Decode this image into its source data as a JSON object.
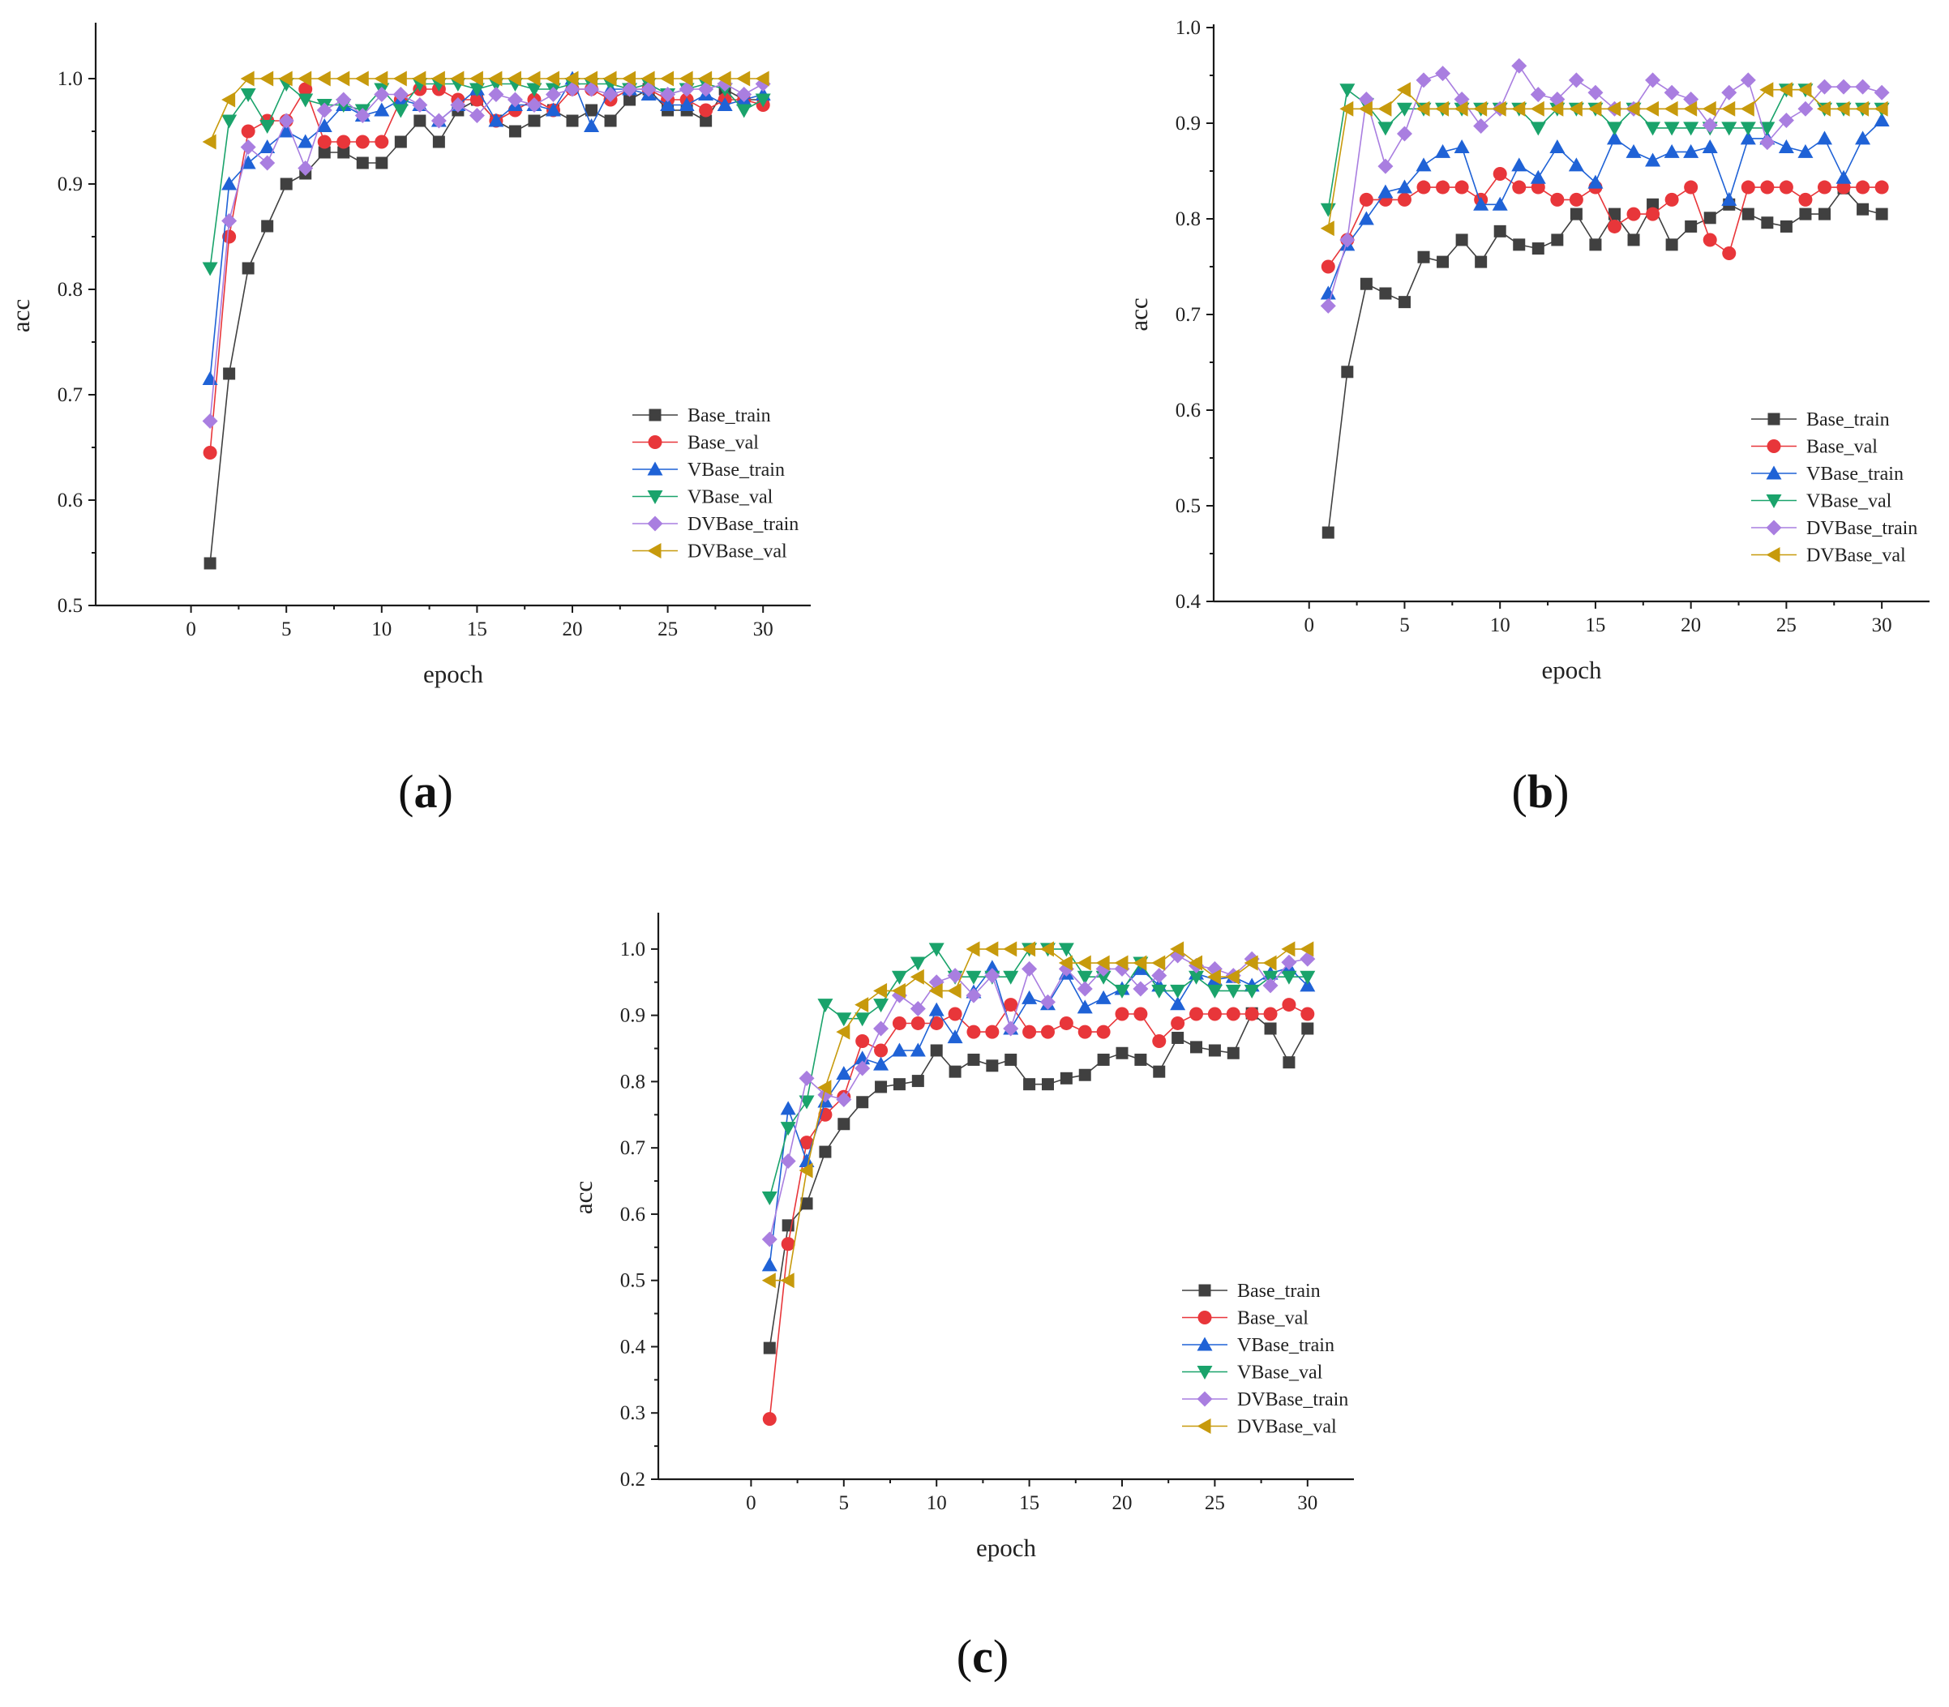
{
  "figure": {
    "panel_labels": {
      "a": {
        "open": "(",
        "letter": "a",
        "close": ")"
      },
      "b": {
        "open": "(",
        "letter": "b",
        "close": ")"
      },
      "c": {
        "open": "(",
        "letter": "c",
        "close": ")"
      }
    }
  },
  "chart_data": [
    {
      "id": "a",
      "type": "line",
      "title": "",
      "xlabel": "epoch",
      "ylabel": "acc",
      "xlim": [
        -5,
        32.5
      ],
      "ylim": [
        0.5,
        1.05
      ],
      "xticks": [
        "0",
        "5",
        "10",
        "15",
        "20",
        "25",
        "30"
      ],
      "yticks": [
        "0.5",
        "0.6",
        "0.7",
        "0.8",
        "0.9",
        "1.0"
      ],
      "legend_position": "bottom-right",
      "x": [
        1,
        2,
        3,
        4,
        5,
        6,
        7,
        8,
        9,
        10,
        11,
        12,
        13,
        14,
        15,
        16,
        17,
        18,
        19,
        20,
        21,
        22,
        23,
        24,
        25,
        26,
        27,
        28,
        29,
        30
      ],
      "series": [
        {
          "name": "Base_train",
          "color": "#404040",
          "marker": "square",
          "values": [
            0.54,
            0.72,
            0.82,
            0.86,
            0.9,
            0.91,
            0.93,
            0.93,
            0.92,
            0.92,
            0.94,
            0.96,
            0.94,
            0.97,
            0.98,
            0.96,
            0.95,
            0.96,
            0.97,
            0.96,
            0.97,
            0.96,
            0.98,
            0.99,
            0.97,
            0.97,
            0.96,
            0.99,
            0.98,
            0.98
          ]
        },
        {
          "name": "Base_val",
          "color": "#e8363a",
          "marker": "circle",
          "values": [
            0.645,
            0.85,
            0.95,
            0.96,
            0.96,
            0.99,
            0.94,
            0.94,
            0.94,
            0.94,
            0.98,
            0.99,
            0.99,
            0.98,
            0.98,
            0.96,
            0.97,
            0.98,
            0.97,
            0.99,
            0.99,
            0.98,
            0.99,
            0.99,
            0.98,
            0.98,
            0.97,
            0.98,
            0.98,
            0.975
          ]
        },
        {
          "name": "VBase_train",
          "color": "#1f62d6",
          "marker": "triangle-up",
          "values": [
            0.715,
            0.9,
            0.92,
            0.935,
            0.95,
            0.94,
            0.955,
            0.975,
            0.965,
            0.97,
            0.98,
            0.975,
            0.96,
            0.975,
            0.99,
            0.96,
            0.975,
            0.975,
            0.97,
            1.0,
            0.955,
            0.99,
            0.99,
            0.985,
            0.975,
            0.975,
            0.985,
            0.975,
            0.98,
            0.985
          ]
        },
        {
          "name": "VBase_val",
          "color": "#1aa36b",
          "marker": "triangle-down",
          "values": [
            0.82,
            0.96,
            0.985,
            0.955,
            0.995,
            0.98,
            0.975,
            0.975,
            0.97,
            0.99,
            0.97,
            0.995,
            0.995,
            0.995,
            0.99,
            0.995,
            0.995,
            0.99,
            0.99,
            0.995,
            0.995,
            0.995,
            0.99,
            0.995,
            0.985,
            0.99,
            0.995,
            0.99,
            0.97,
            0.98
          ]
        },
        {
          "name": "DVBase_train",
          "color": "#a97ee0",
          "marker": "diamond",
          "values": [
            0.675,
            0.865,
            0.935,
            0.92,
            0.96,
            0.915,
            0.97,
            0.98,
            0.965,
            0.985,
            0.985,
            0.975,
            0.96,
            0.975,
            0.965,
            0.985,
            0.98,
            0.975,
            0.985,
            0.99,
            0.99,
            0.985,
            0.99,
            0.99,
            0.985,
            0.99,
            0.99,
            0.995,
            0.985,
            0.995
          ]
        },
        {
          "name": "DVBase_val",
          "color": "#c79a0c",
          "marker": "triangle-left",
          "values": [
            0.94,
            0.98,
            1.0,
            1.0,
            1.0,
            1.0,
            1.0,
            1.0,
            1.0,
            1.0,
            1.0,
            1.0,
            1.0,
            1.0,
            1.0,
            1.0,
            1.0,
            1.0,
            1.0,
            1.0,
            1.0,
            1.0,
            1.0,
            1.0,
            1.0,
            1.0,
            1.0,
            1.0,
            1.0,
            1.0
          ]
        }
      ]
    },
    {
      "id": "b",
      "type": "line",
      "title": "",
      "xlabel": "epoch",
      "ylabel": "acc",
      "xlim": [
        -5,
        32.5
      ],
      "ylim": [
        0.4,
        1.0
      ],
      "xticks": [
        "0",
        "5",
        "10",
        "15",
        "20",
        "25",
        "30"
      ],
      "yticks": [
        "0.4",
        "0.5",
        "0.6",
        "0.7",
        "0.8",
        "0.9",
        "1.0"
      ],
      "legend_position": "bottom-right",
      "x": [
        1,
        2,
        3,
        4,
        5,
        6,
        7,
        8,
        9,
        10,
        11,
        12,
        13,
        14,
        15,
        16,
        17,
        18,
        19,
        20,
        21,
        22,
        23,
        24,
        25,
        26,
        27,
        28,
        29,
        30
      ],
      "series": [
        {
          "name": "Base_train",
          "color": "#404040",
          "marker": "square",
          "values": [
            0.472,
            0.64,
            0.732,
            0.722,
            0.713,
            0.76,
            0.755,
            0.778,
            0.755,
            0.787,
            0.773,
            0.769,
            0.778,
            0.805,
            0.773,
            0.805,
            0.778,
            0.815,
            0.773,
            0.792,
            0.801,
            0.815,
            0.805,
            0.796,
            0.792,
            0.805,
            0.805,
            0.832,
            0.81,
            0.805
          ]
        },
        {
          "name": "Base_val",
          "color": "#e8363a",
          "marker": "circle",
          "values": [
            0.75,
            0.778,
            0.82,
            0.82,
            0.82,
            0.833,
            0.833,
            0.833,
            0.82,
            0.847,
            0.833,
            0.833,
            0.82,
            0.82,
            0.833,
            0.792,
            0.805,
            0.805,
            0.82,
            0.833,
            0.778,
            0.764,
            0.833,
            0.833,
            0.833,
            0.82,
            0.833,
            0.833,
            0.833,
            0.833
          ]
        },
        {
          "name": "VBase_train",
          "color": "#1f62d6",
          "marker": "triangle-up",
          "values": [
            0.722,
            0.773,
            0.8,
            0.828,
            0.833,
            0.856,
            0.87,
            0.875,
            0.815,
            0.815,
            0.856,
            0.843,
            0.875,
            0.856,
            0.838,
            0.884,
            0.87,
            0.861,
            0.87,
            0.87,
            0.875,
            0.82,
            0.884,
            0.884,
            0.875,
            0.87,
            0.884,
            0.843,
            0.884,
            0.903
          ]
        },
        {
          "name": "VBase_val",
          "color": "#1aa36b",
          "marker": "triangle-down",
          "values": [
            0.81,
            0.935,
            0.92,
            0.895,
            0.915,
            0.915,
            0.915,
            0.915,
            0.915,
            0.915,
            0.915,
            0.895,
            0.915,
            0.915,
            0.915,
            0.895,
            0.915,
            0.895,
            0.895,
            0.895,
            0.895,
            0.895,
            0.895,
            0.895,
            0.935,
            0.935,
            0.915,
            0.915,
            0.915,
            0.915
          ]
        },
        {
          "name": "DVBase_train",
          "color": "#a97ee0",
          "marker": "diamond",
          "values": [
            0.709,
            0.778,
            0.925,
            0.855,
            0.889,
            0.945,
            0.952,
            0.925,
            0.897,
            0.915,
            0.96,
            0.93,
            0.925,
            0.945,
            0.932,
            0.915,
            0.915,
            0.945,
            0.932,
            0.925,
            0.898,
            0.932,
            0.945,
            0.88,
            0.903,
            0.915,
            0.938,
            0.938,
            0.938,
            0.932
          ]
        },
        {
          "name": "DVBase_val",
          "color": "#c79a0c",
          "marker": "triangle-left",
          "values": [
            0.79,
            0.915,
            0.915,
            0.915,
            0.935,
            0.915,
            0.915,
            0.915,
            0.915,
            0.915,
            0.915,
            0.915,
            0.915,
            0.915,
            0.915,
            0.915,
            0.915,
            0.915,
            0.915,
            0.915,
            0.915,
            0.915,
            0.915,
            0.935,
            0.935,
            0.935,
            0.915,
            0.915,
            0.915,
            0.915
          ]
        }
      ]
    },
    {
      "id": "c",
      "type": "line",
      "title": "",
      "xlabel": "epoch",
      "ylabel": "acc",
      "xlim": [
        -5,
        32.5
      ],
      "ylim": [
        0.2,
        1.05
      ],
      "xticks": [
        "0",
        "5",
        "10",
        "15",
        "20",
        "25",
        "30"
      ],
      "yticks": [
        "0.2",
        "0.3",
        "0.4",
        "0.5",
        "0.6",
        "0.7",
        "0.8",
        "0.9",
        "1.0"
      ],
      "legend_position": "bottom-right",
      "x": [
        1,
        2,
        3,
        4,
        5,
        6,
        7,
        8,
        9,
        10,
        11,
        12,
        13,
        14,
        15,
        16,
        17,
        18,
        19,
        20,
        21,
        22,
        23,
        24,
        25,
        26,
        27,
        28,
        29,
        30
      ],
      "series": [
        {
          "name": "Base_train",
          "color": "#404040",
          "marker": "square",
          "values": [
            0.398,
            0.583,
            0.616,
            0.694,
            0.736,
            0.769,
            0.792,
            0.796,
            0.801,
            0.847,
            0.815,
            0.833,
            0.824,
            0.833,
            0.796,
            0.796,
            0.805,
            0.81,
            0.833,
            0.843,
            0.833,
            0.815,
            0.866,
            0.852,
            0.847,
            0.843,
            0.903,
            0.88,
            0.829,
            0.88
          ]
        },
        {
          "name": "Base_val",
          "color": "#e8363a",
          "marker": "circle",
          "values": [
            0.291,
            0.555,
            0.708,
            0.75,
            0.777,
            0.861,
            0.847,
            0.888,
            0.888,
            0.888,
            0.902,
            0.875,
            0.875,
            0.916,
            0.875,
            0.875,
            0.888,
            0.875,
            0.875,
            0.902,
            0.902,
            0.861,
            0.888,
            0.902,
            0.902,
            0.902,
            0.902,
            0.902,
            0.916,
            0.902
          ]
        },
        {
          "name": "VBase_train",
          "color": "#1f62d6",
          "marker": "triangle-up",
          "values": [
            0.523,
            0.759,
            0.68,
            0.77,
            0.812,
            0.835,
            0.826,
            0.847,
            0.847,
            0.908,
            0.867,
            0.935,
            0.972,
            0.88,
            0.926,
            0.917,
            0.963,
            0.912,
            0.926,
            0.94,
            0.97,
            0.945,
            0.917,
            0.963,
            0.954,
            0.958,
            0.945,
            0.963,
            0.972,
            0.945
          ]
        },
        {
          "name": "VBase_val",
          "color": "#1aa36b",
          "marker": "triangle-down",
          "values": [
            0.625,
            0.73,
            0.77,
            0.916,
            0.895,
            0.895,
            0.916,
            0.958,
            0.979,
            1.0,
            0.958,
            0.958,
            0.958,
            0.958,
            1.0,
            1.0,
            1.0,
            0.958,
            0.958,
            0.937,
            0.979,
            0.937,
            0.937,
            0.958,
            0.937,
            0.937,
            0.937,
            0.958,
            0.958,
            0.958
          ]
        },
        {
          "name": "DVBase_train",
          "color": "#a97ee0",
          "marker": "diamond",
          "values": [
            0.562,
            0.68,
            0.805,
            0.78,
            0.773,
            0.82,
            0.88,
            0.93,
            0.91,
            0.95,
            0.96,
            0.93,
            0.96,
            0.88,
            0.97,
            0.92,
            0.97,
            0.94,
            0.97,
            0.97,
            0.94,
            0.96,
            0.99,
            0.975,
            0.97,
            0.96,
            0.985,
            0.945,
            0.98,
            0.985
          ]
        },
        {
          "name": "DVBase_val",
          "color": "#c79a0c",
          "marker": "triangle-left",
          "values": [
            0.5,
            0.5,
            0.666,
            0.791,
            0.875,
            0.916,
            0.937,
            0.937,
            0.958,
            0.937,
            0.937,
            1.0,
            1.0,
            1.0,
            1.0,
            1.0,
            0.979,
            0.979,
            0.979,
            0.979,
            0.979,
            0.979,
            1.0,
            0.979,
            0.958,
            0.958,
            0.979,
            0.979,
            1.0,
            1.0
          ]
        }
      ]
    }
  ]
}
